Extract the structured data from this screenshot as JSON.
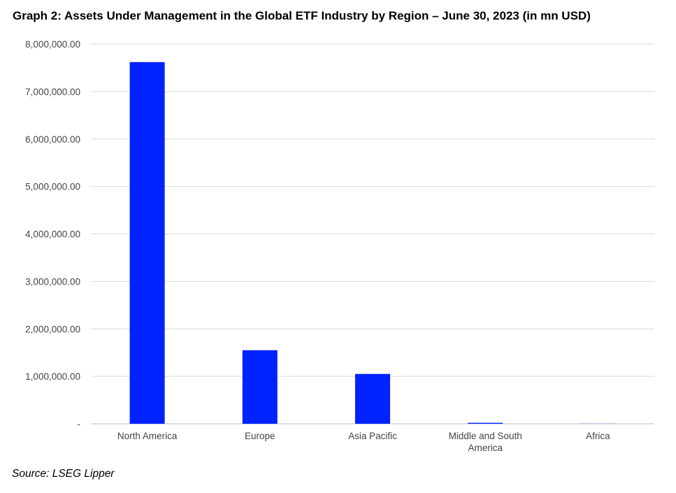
{
  "chart_data": {
    "type": "bar",
    "title": "Graph 2: Assets Under Management in the Global ETF Industry by Region – June 30, 2023 (in mn USD)",
    "categories": [
      "North America",
      "Europe",
      "Asia Pacific",
      "Middle and South America",
      "Africa"
    ],
    "values": [
      7620000,
      1550000,
      1050000,
      20000,
      2000
    ],
    "ylim": [
      0,
      8000000
    ],
    "yticks": [
      "-",
      "1,000,000.00",
      "2,000,000.00",
      "3,000,000.00",
      "4,000,000.00",
      "5,000,000.00",
      "6,000,000.00",
      "7,000,000.00",
      "8,000,000.00"
    ],
    "ytick_values": [
      0,
      1000000,
      2000000,
      3000000,
      4000000,
      5000000,
      6000000,
      7000000,
      8000000
    ],
    "xlabel": "",
    "ylabel": "",
    "grid": true,
    "legend": "none",
    "bar_color": "#0022ff",
    "grid_color": "#d9d9d9"
  },
  "source": "Source: LSEG Lipper"
}
